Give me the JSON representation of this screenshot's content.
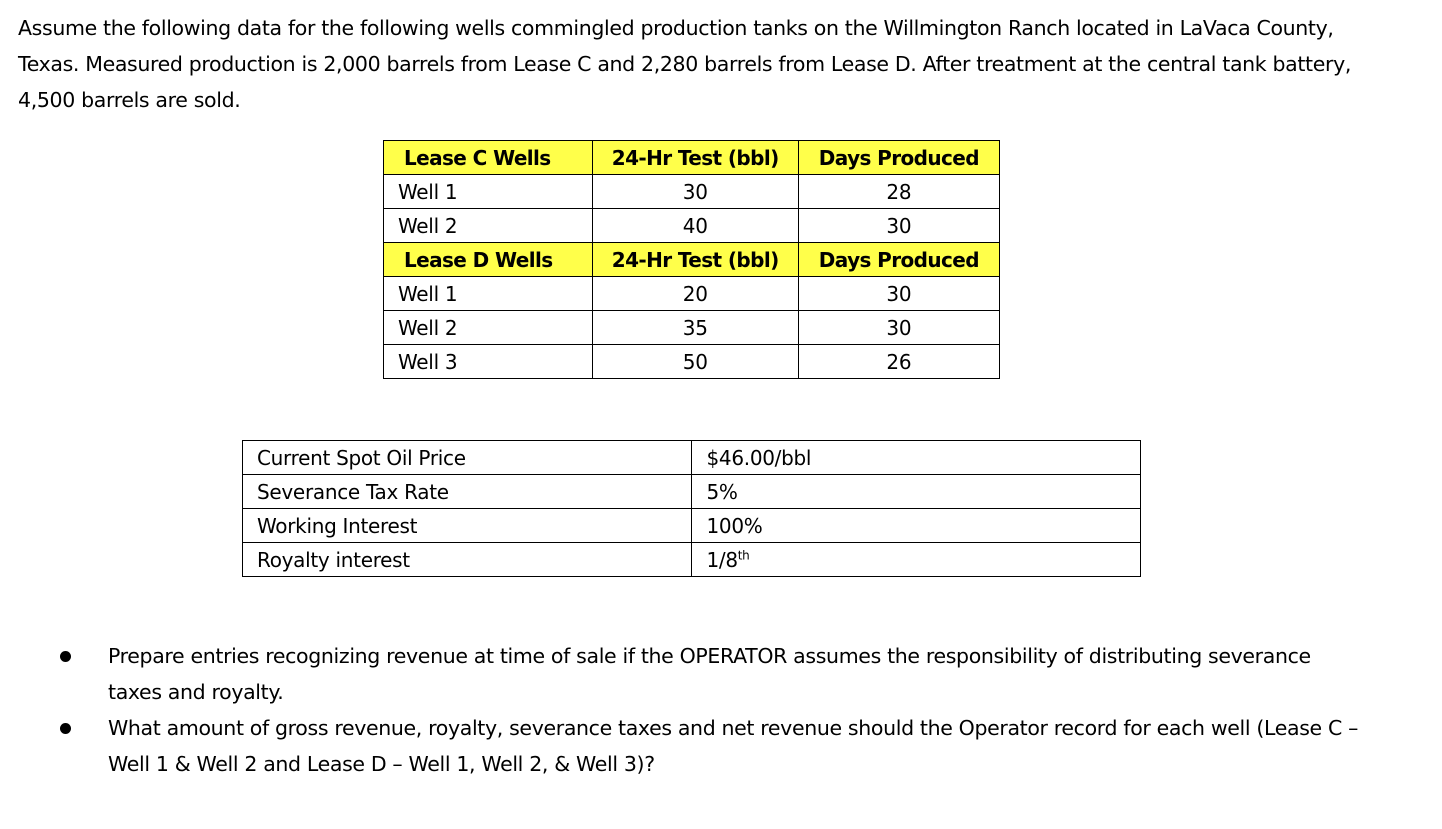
{
  "intro": "Assume the following data for the following wells commingled production tanks on the Willmington Ranch located in LaVaca County, Texas.  Measured production is 2,000 barrels from Lease C and 2,280 barrels from Lease D.  After treatment at the central tank battery, 4,500 barrels are sold.",
  "wells_table": {
    "lease_c": {
      "header": [
        "Lease C Wells",
        "24-Hr Test (bbl)",
        "Days Produced"
      ],
      "rows": [
        [
          "Well 1",
          "30",
          "28"
        ],
        [
          "Well 2",
          "40",
          "30"
        ]
      ]
    },
    "lease_d": {
      "header": [
        "Lease D Wells",
        "24-Hr Test (bbl)",
        "Days Produced"
      ],
      "rows": [
        [
          "Well 1",
          "20",
          "30"
        ],
        [
          "Well 2",
          "35",
          "30"
        ],
        [
          "Well 3",
          "50",
          "26"
        ]
      ]
    },
    "header_color": "#ffff4a"
  },
  "params_table": {
    "rows": [
      [
        "Current Spot Oil Price",
        "$46.00/bbl"
      ],
      [
        "Severance Tax Rate",
        "5%"
      ],
      [
        "Working Interest",
        "100%"
      ],
      [
        "Royalty interest",
        "1/8",
        "th"
      ]
    ]
  },
  "questions": [
    "Prepare entries recognizing revenue at time of sale if the OPERATOR assumes the responsibility of distributing severance taxes and royalty.",
    "What amount of gross revenue, royalty, severance taxes and net revenue should the Operator record for each well (Lease C – Well 1 & Well 2 and Lease D – Well 1, Well 2, & Well 3)?"
  ]
}
